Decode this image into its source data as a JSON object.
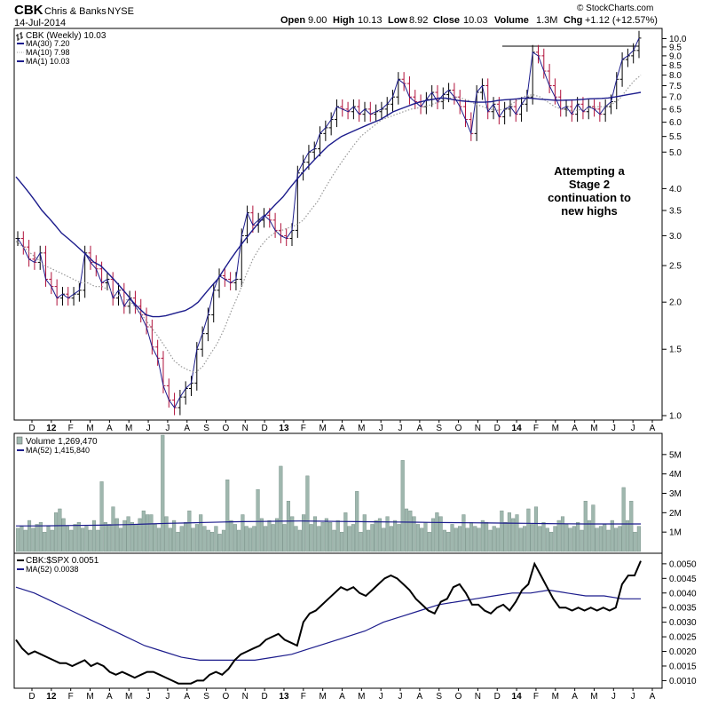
{
  "header": {
    "symbol": "CBK",
    "company": "Chris & Banks",
    "exchange": "NYSE",
    "date": "14-Jul-2014",
    "open_label": "Open",
    "open": "9.00",
    "high_label": "High",
    "high": "10.13",
    "low_label": "Low",
    "low": "8.92",
    "close_label": "Close",
    "close": "10.03",
    "volume_label": "Volume",
    "volume": "1.3M",
    "chg_label": "Chg",
    "chg": "+1.12 (+12.57%)",
    "copyright": "© StockCharts.com"
  },
  "colors": {
    "up_bar": "#000000",
    "down_bar": "#b0103a",
    "ma30": "#1c1c8c",
    "ma10": "#999999",
    "volume_bar": "#9fb7ae",
    "ratio_line": "#000000"
  },
  "annotation": [
    "Attempting a",
    "Stage 2",
    "continuation to",
    "new highs"
  ],
  "chart_data": [
    {
      "type": "line",
      "subtype": "ohlc-weekly",
      "legend": [
        {
          "label": "CBK (Weekly) 10.03",
          "icon": "ohlc-icon"
        },
        {
          "label": "MA(30) 7.20",
          "icon": "solid-blue-line"
        },
        {
          "label": "MA(10) 7.98",
          "icon": "dotted-gray-line"
        },
        {
          "label": "MA(1) 10.03",
          "icon": "solid-blue-line"
        }
      ],
      "y_scale": "log",
      "ylim": [
        1.0,
        10.3
      ],
      "y_ticks": [
        "1.0",
        "1.5",
        "2.0",
        "2.5",
        "3.0",
        "3.5",
        "4.0",
        "5.0",
        "5.5",
        "6.0",
        "6.5",
        "7.0",
        "7.5",
        "8.0",
        "8.5",
        "9.0",
        "9.5",
        "10.0"
      ],
      "x_labels": [
        "D",
        "12",
        "F",
        "M",
        "A",
        "M",
        "J",
        "J",
        "A",
        "S",
        "O",
        "N",
        "D",
        "13",
        "F",
        "M",
        "A",
        "M",
        "J",
        "J",
        "A",
        "S",
        "O",
        "N",
        "D",
        "14",
        "F",
        "M",
        "A",
        "M",
        "J",
        "J",
        "A"
      ],
      "close": [
        2.95,
        2.8,
        2.6,
        2.55,
        2.7,
        2.3,
        2.2,
        2.05,
        2.1,
        2.05,
        2.1,
        2.15,
        2.7,
        2.55,
        2.45,
        2.25,
        2.3,
        2.05,
        2.15,
        1.95,
        2.05,
        1.95,
        1.85,
        1.72,
        1.52,
        1.42,
        1.2,
        1.1,
        1.05,
        1.12,
        1.18,
        1.22,
        1.5,
        1.65,
        1.85,
        2.15,
        2.35,
        2.3,
        2.25,
        2.3,
        3.0,
        3.45,
        3.2,
        3.3,
        3.4,
        3.3,
        3.1,
        3.0,
        2.95,
        3.1,
        4.4,
        4.7,
        5.0,
        5.1,
        5.6,
        5.8,
        6.1,
        6.6,
        6.5,
        6.4,
        6.6,
        6.3,
        6.5,
        6.3,
        6.4,
        6.5,
        6.7,
        7.0,
        7.8,
        7.6,
        7.0,
        6.8,
        6.6,
        6.9,
        7.2,
        6.8,
        7.1,
        7.3,
        7.0,
        6.6,
        6.1,
        5.6,
        7.2,
        7.5,
        6.4,
        6.7,
        6.2,
        6.5,
        6.6,
        6.3,
        6.7,
        7.0,
        9.2,
        9.0,
        8.2,
        7.5,
        7.0,
        6.5,
        6.6,
        6.3,
        6.7,
        6.4,
        6.6,
        6.5,
        6.3,
        6.6,
        6.8,
        7.8,
        8.8,
        9.0,
        9.3,
        10.03
      ],
      "ma30": [
        4.3,
        4.1,
        3.9,
        3.7,
        3.5,
        3.35,
        3.2,
        3.05,
        2.95,
        2.85,
        2.75,
        2.65,
        2.55,
        2.5,
        2.4,
        2.3,
        2.2,
        2.1,
        2.0,
        1.92,
        1.85,
        1.83,
        1.83,
        1.84,
        1.86,
        1.88,
        1.9,
        1.94,
        2.0,
        2.1,
        2.2,
        2.3,
        2.45,
        2.6,
        2.75,
        2.9,
        3.05,
        3.2,
        3.35,
        3.5,
        3.65,
        3.8,
        4.0,
        4.2,
        4.4,
        4.6,
        4.8,
        5.0,
        5.2,
        5.35,
        5.5,
        5.6,
        5.7,
        5.8,
        5.9,
        6.0,
        6.1,
        6.25,
        6.4,
        6.5,
        6.6,
        6.7,
        6.78,
        6.85,
        6.9,
        6.95,
        6.95,
        6.9,
        6.85,
        6.82,
        6.8,
        6.78,
        6.78,
        6.8,
        6.85,
        6.88,
        6.9,
        6.92,
        6.95,
        6.95,
        6.92,
        6.9,
        6.88,
        6.86,
        6.86,
        6.87,
        6.88,
        6.9,
        6.92,
        6.93,
        6.94,
        6.96,
        7.0,
        7.05,
        7.1,
        7.15,
        7.2
      ],
      "ma10": [
        2.9,
        2.8,
        2.7,
        2.6,
        2.5,
        2.45,
        2.4,
        2.35,
        2.3,
        2.25,
        2.25,
        2.2,
        2.2,
        2.15,
        2.1,
        2.05,
        2.0,
        1.9,
        1.8,
        1.7,
        1.6,
        1.5,
        1.4,
        1.35,
        1.32,
        1.3,
        1.35,
        1.45,
        1.55,
        1.7,
        1.9,
        2.1,
        2.35,
        2.6,
        2.8,
        2.95,
        3.05,
        3.1,
        3.15,
        3.2,
        3.3,
        3.5,
        3.7,
        4.0,
        4.3,
        4.6,
        4.9,
        5.2,
        5.5,
        5.7,
        5.9,
        6.1,
        6.2,
        6.3,
        6.4,
        6.5,
        6.55,
        6.6,
        6.7,
        6.8,
        6.9,
        7.0,
        6.95,
        6.85,
        6.7,
        6.6,
        6.5,
        6.45,
        6.5,
        6.7,
        6.9,
        7.05,
        7.1,
        7.0,
        6.8,
        6.6,
        6.5,
        6.45,
        6.45,
        6.5,
        6.55,
        6.6,
        6.6,
        6.7,
        6.9,
        7.3,
        7.7,
        8.0
      ]
    },
    {
      "type": "bar",
      "legend": [
        {
          "label": "Volume 1,269,470",
          "icon": "volume-icon"
        },
        {
          "label": "MA(52) 1,415,840",
          "icon": "solid-blue-line"
        }
      ],
      "ylim": [
        0,
        6000000
      ],
      "y_ticks": [
        "1M",
        "2M",
        "3M",
        "4M",
        "5M"
      ],
      "values_m": [
        1.2,
        1.3,
        1.1,
        1.6,
        1.2,
        1.4,
        1.5,
        1.0,
        1.3,
        1.1,
        2.0,
        2.2,
        1.7,
        1.3,
        1.1,
        1.4,
        1.5,
        1.2,
        1.3,
        1.1,
        1.6,
        1.1,
        3.6,
        1.5,
        1.4,
        2.3,
        1.7,
        1.2,
        1.6,
        1.8,
        1.5,
        1.4,
        1.7,
        2.1,
        1.9,
        1.9,
        1.4,
        1.2,
        6.0,
        1.8,
        1.2,
        1.6,
        1.0,
        1.3,
        1.5,
        2.1,
        1.2,
        1.4,
        1.9,
        1.3,
        1.1,
        1.0,
        1.3,
        0.9,
        1.1,
        3.7,
        1.6,
        1.4,
        1.1,
        1.9,
        1.3,
        1.2,
        1.3,
        3.2,
        1.7,
        1.3,
        1.6,
        1.4,
        1.7,
        4.4,
        1.4,
        2.6,
        1.8,
        1.3,
        1.1,
        1.9,
        3.9,
        1.4,
        1.8,
        1.3,
        1.5,
        1.7,
        1.5,
        1.1,
        1.6,
        1.0,
        2.0,
        1.3,
        1.4,
        3.1,
        1.0,
        1.9,
        1.1,
        1.4,
        1.6,
        1.7,
        1.2,
        1.8,
        1.3,
        1.6,
        1.4,
        4.7,
        2.2,
        2.1,
        1.8,
        1.4,
        1.2,
        1.5,
        1.0,
        1.7,
        2.0,
        1.8,
        1.1,
        1.0,
        1.4,
        1.2,
        1.3,
        1.9,
        1.2,
        1.5,
        1.3,
        1.2,
        1.6,
        1.5,
        1.1,
        1.3,
        1.2,
        2.1,
        1.5,
        2.0,
        1.7,
        1.9,
        1.2,
        1.3,
        2.2,
        1.4,
        2.3,
        1.3,
        1.5,
        1.2,
        1.0,
        1.3,
        1.6,
        1.8,
        1.4,
        1.2,
        1.3,
        1.5,
        1.1,
        2.6,
        1.6,
        2.4,
        1.2,
        1.3,
        1.4,
        1.1,
        1.6,
        1.2,
        1.3,
        3.3,
        1.6,
        2.6,
        1.0,
        1.3
      ],
      "ma52_m": [
        1.32,
        1.32,
        1.33,
        1.34,
        1.35,
        1.37,
        1.39,
        1.42,
        1.45,
        1.47,
        1.5,
        1.52,
        1.54,
        1.55,
        1.56,
        1.57,
        1.56,
        1.55,
        1.54,
        1.53,
        1.52,
        1.51,
        1.5,
        1.49,
        1.48,
        1.47,
        1.46,
        1.45,
        1.44,
        1.43,
        1.42,
        1.42,
        1.42,
        1.42
      ]
    },
    {
      "type": "line",
      "legend": [
        {
          "label": "CBK:$SPX 0.0051",
          "icon": "solid-black-line"
        },
        {
          "label": "MA(52) 0.0038",
          "icon": "solid-blue-line"
        }
      ],
      "ylim": [
        0.0008,
        0.0053
      ],
      "y_ticks": [
        "0.0010",
        "0.0015",
        "0.0020",
        "0.0025",
        "0.0030",
        "0.0035",
        "0.0040",
        "0.0045",
        "0.0050"
      ],
      "ratio": [
        0.0024,
        0.0021,
        0.0019,
        0.002,
        0.0019,
        0.0018,
        0.0017,
        0.0016,
        0.0016,
        0.0015,
        0.0016,
        0.0017,
        0.0015,
        0.0016,
        0.0015,
        0.0013,
        0.0012,
        0.0013,
        0.0012,
        0.0011,
        0.0012,
        0.0013,
        0.0013,
        0.0012,
        0.0011,
        0.001,
        0.0009,
        0.0009,
        0.0009,
        0.001,
        0.001,
        0.0012,
        0.0013,
        0.0012,
        0.0014,
        0.0017,
        0.0019,
        0.002,
        0.0021,
        0.0022,
        0.0024,
        0.0025,
        0.0026,
        0.0024,
        0.0023,
        0.0022,
        0.003,
        0.0033,
        0.0034,
        0.0036,
        0.0038,
        0.004,
        0.0042,
        0.0041,
        0.0042,
        0.004,
        0.0039,
        0.0041,
        0.0043,
        0.0045,
        0.0046,
        0.0045,
        0.0043,
        0.0041,
        0.0038,
        0.0036,
        0.0034,
        0.0033,
        0.0037,
        0.0038,
        0.0042,
        0.0043,
        0.004,
        0.0036,
        0.0036,
        0.0034,
        0.0033,
        0.0035,
        0.0036,
        0.0034,
        0.0037,
        0.0041,
        0.0043,
        0.005,
        0.0046,
        0.0042,
        0.0038,
        0.0035,
        0.0035,
        0.0034,
        0.0035,
        0.0034,
        0.0035,
        0.0034,
        0.0035,
        0.0034,
        0.0035,
        0.0043,
        0.0046,
        0.0046,
        0.0051
      ],
      "ma52": [
        0.0042,
        0.004,
        0.0037,
        0.0034,
        0.0031,
        0.0028,
        0.0025,
        0.0022,
        0.002,
        0.0018,
        0.0017,
        0.0017,
        0.0017,
        0.0017,
        0.0018,
        0.0019,
        0.0021,
        0.0023,
        0.0025,
        0.0027,
        0.003,
        0.0032,
        0.0034,
        0.0036,
        0.0037,
        0.0038,
        0.0039,
        0.004,
        0.004,
        0.0041,
        0.004,
        0.0039,
        0.0039,
        0.0038,
        0.0038
      ]
    }
  ]
}
